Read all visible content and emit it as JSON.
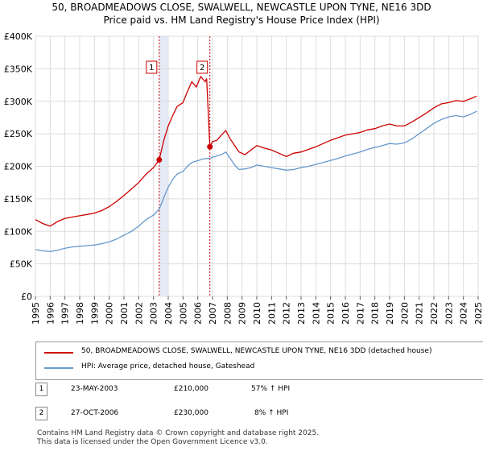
{
  "title_line1": "50, BROADMEADOWS CLOSE, SWALWELL, NEWCASTLE UPON TYNE, NE16 3DD",
  "title_line2": "Price paid vs. HM Land Registry's House Price Index (HPI)",
  "chart_data": {
    "type": "line",
    "title": "50, BROADMEADOWS CLOSE, SWALWELL, NEWCASTLE UPON TYNE, NE16 3DD — Price paid vs. HM Land Registry's House Price Index (HPI)",
    "xlabel": "",
    "ylabel": "",
    "xlim": [
      1995,
      2025
    ],
    "ylim": [
      0,
      400000
    ],
    "y_ticks": [
      {
        "value": 0,
        "label": "£0"
      },
      {
        "value": 50000,
        "label": "£50K"
      },
      {
        "value": 100000,
        "label": "£100K"
      },
      {
        "value": 150000,
        "label": "£150K"
      },
      {
        "value": 200000,
        "label": "£200K"
      },
      {
        "value": 250000,
        "label": "£250K"
      },
      {
        "value": 300000,
        "label": "£300K"
      },
      {
        "value": 350000,
        "label": "£350K"
      },
      {
        "value": 400000,
        "label": "£400K"
      }
    ],
    "x_ticks": [
      "1995",
      "1996",
      "1997",
      "1998",
      "1999",
      "2000",
      "2001",
      "2002",
      "2003",
      "2004",
      "2005",
      "2006",
      "2007",
      "2008",
      "2009",
      "2010",
      "2011",
      "2012",
      "2013",
      "2014",
      "2015",
      "2016",
      "2017",
      "2018",
      "2019",
      "2020",
      "2021",
      "2022",
      "2023",
      "2024",
      "2025"
    ],
    "grid": true,
    "series": [
      {
        "name": "50, BROADMEADOWS CLOSE, SWALWELL, NEWCASTLE UPON TYNE, NE16 3DD (detached house)",
        "color": "#cc0000",
        "x": [
          1995.0,
          1995.5,
          1996.0,
          1996.5,
          1997.0,
          1997.5,
          1998.0,
          1998.5,
          1999.0,
          1999.5,
          2000.0,
          2000.5,
          2001.0,
          2001.5,
          2002.0,
          2002.5,
          2003.0,
          2003.39,
          2003.7,
          2004.0,
          2004.3,
          2004.6,
          2005.0,
          2005.3,
          2005.6,
          2005.9,
          2006.2,
          2006.5,
          2006.6,
          2006.82,
          2007.0,
          2007.3,
          2007.6,
          2007.9,
          2008.2,
          2008.5,
          2008.8,
          2009.2,
          2009.6,
          2010.0,
          2010.5,
          2011.0,
          2011.5,
          2012.0,
          2012.5,
          2013.0,
          2013.5,
          2014.0,
          2014.5,
          2015.0,
          2015.5,
          2016.0,
          2016.5,
          2017.0,
          2017.5,
          2018.0,
          2018.5,
          2019.0,
          2019.5,
          2020.0,
          2020.5,
          2021.0,
          2021.5,
          2022.0,
          2022.5,
          2023.0,
          2023.5,
          2024.0,
          2024.5,
          2024.9
        ],
        "values": [
          118000,
          112000,
          108000,
          115000,
          120000,
          122000,
          124000,
          126000,
          128000,
          132000,
          138000,
          146000,
          155000,
          165000,
          175000,
          188000,
          198000,
          210000,
          240000,
          262000,
          278000,
          292000,
          298000,
          315000,
          330000,
          322000,
          338000,
          330000,
          335000,
          230000,
          238000,
          240000,
          248000,
          255000,
          242000,
          232000,
          222000,
          218000,
          225000,
          232000,
          228000,
          225000,
          220000,
          215000,
          220000,
          222000,
          226000,
          230000,
          235000,
          240000,
          244000,
          248000,
          250000,
          252000,
          256000,
          258000,
          262000,
          265000,
          262000,
          262000,
          268000,
          275000,
          282000,
          290000,
          296000,
          298000,
          301000,
          300000,
          304000,
          308000
        ]
      },
      {
        "name": "HPI: Average price, detached house, Gateshead",
        "color": "#6699cc",
        "x": [
          1995.0,
          1995.5,
          1996.0,
          1996.5,
          1997.0,
          1997.5,
          1998.0,
          1998.5,
          1999.0,
          1999.5,
          2000.0,
          2000.5,
          2001.0,
          2001.5,
          2002.0,
          2002.5,
          2003.0,
          2003.39,
          2003.7,
          2004.0,
          2004.3,
          2004.6,
          2005.0,
          2005.3,
          2005.6,
          2005.9,
          2006.2,
          2006.5,
          2006.82,
          2007.0,
          2007.3,
          2007.6,
          2007.9,
          2008.2,
          2008.5,
          2008.8,
          2009.2,
          2009.6,
          2010.0,
          2010.5,
          2011.0,
          2011.5,
          2012.0,
          2012.5,
          2013.0,
          2013.5,
          2014.0,
          2014.5,
          2015.0,
          2015.5,
          2016.0,
          2016.5,
          2017.0,
          2017.5,
          2018.0,
          2018.5,
          2019.0,
          2019.5,
          2020.0,
          2020.5,
          2021.0,
          2021.5,
          2022.0,
          2022.5,
          2023.0,
          2023.5,
          2024.0,
          2024.5,
          2024.9
        ],
        "values": [
          72000,
          70000,
          69000,
          71000,
          74000,
          76000,
          77000,
          78000,
          79000,
          81000,
          84000,
          88000,
          94000,
          100000,
          108000,
          118000,
          125000,
          134000,
          152000,
          168000,
          180000,
          188000,
          192000,
          200000,
          206000,
          208000,
          210000,
          212000,
          212000,
          214000,
          216000,
          218000,
          222000,
          212000,
          202000,
          195000,
          196000,
          198000,
          202000,
          200000,
          198000,
          196000,
          194000,
          195000,
          198000,
          200000,
          203000,
          206000,
          209000,
          212000,
          216000,
          219000,
          222000,
          226000,
          229000,
          232000,
          235000,
          234000,
          236000,
          242000,
          250000,
          258000,
          266000,
          272000,
          276000,
          278000,
          276000,
          280000,
          285000
        ]
      }
    ],
    "annotations": [
      {
        "label": "1",
        "x": 2003.39,
        "value": 210000,
        "shade_until": 2004.0
      },
      {
        "label": "2",
        "x": 2006.82,
        "value": 230000
      }
    ]
  },
  "legend": [
    {
      "label": "50, BROADMEADOWS CLOSE, SWALWELL, NEWCASTLE UPON TYNE, NE16 3DD (detached house)",
      "color": "#cc0000"
    },
    {
      "label": "HPI: Average price, detached house, Gateshead",
      "color": "#6699cc"
    }
  ],
  "transactions": [
    {
      "num": "1",
      "date": "23-MAY-2003",
      "price": "£210,000",
      "hpi": "57% ↑ HPI"
    },
    {
      "num": "2",
      "date": "27-OCT-2006",
      "price": "£230,000",
      "hpi": "8% ↑ HPI"
    }
  ],
  "footer_line1": "Contains HM Land Registry data © Crown copyright and database right 2025.",
  "footer_line2": "This data is licensed under the Open Government Licence v3.0."
}
